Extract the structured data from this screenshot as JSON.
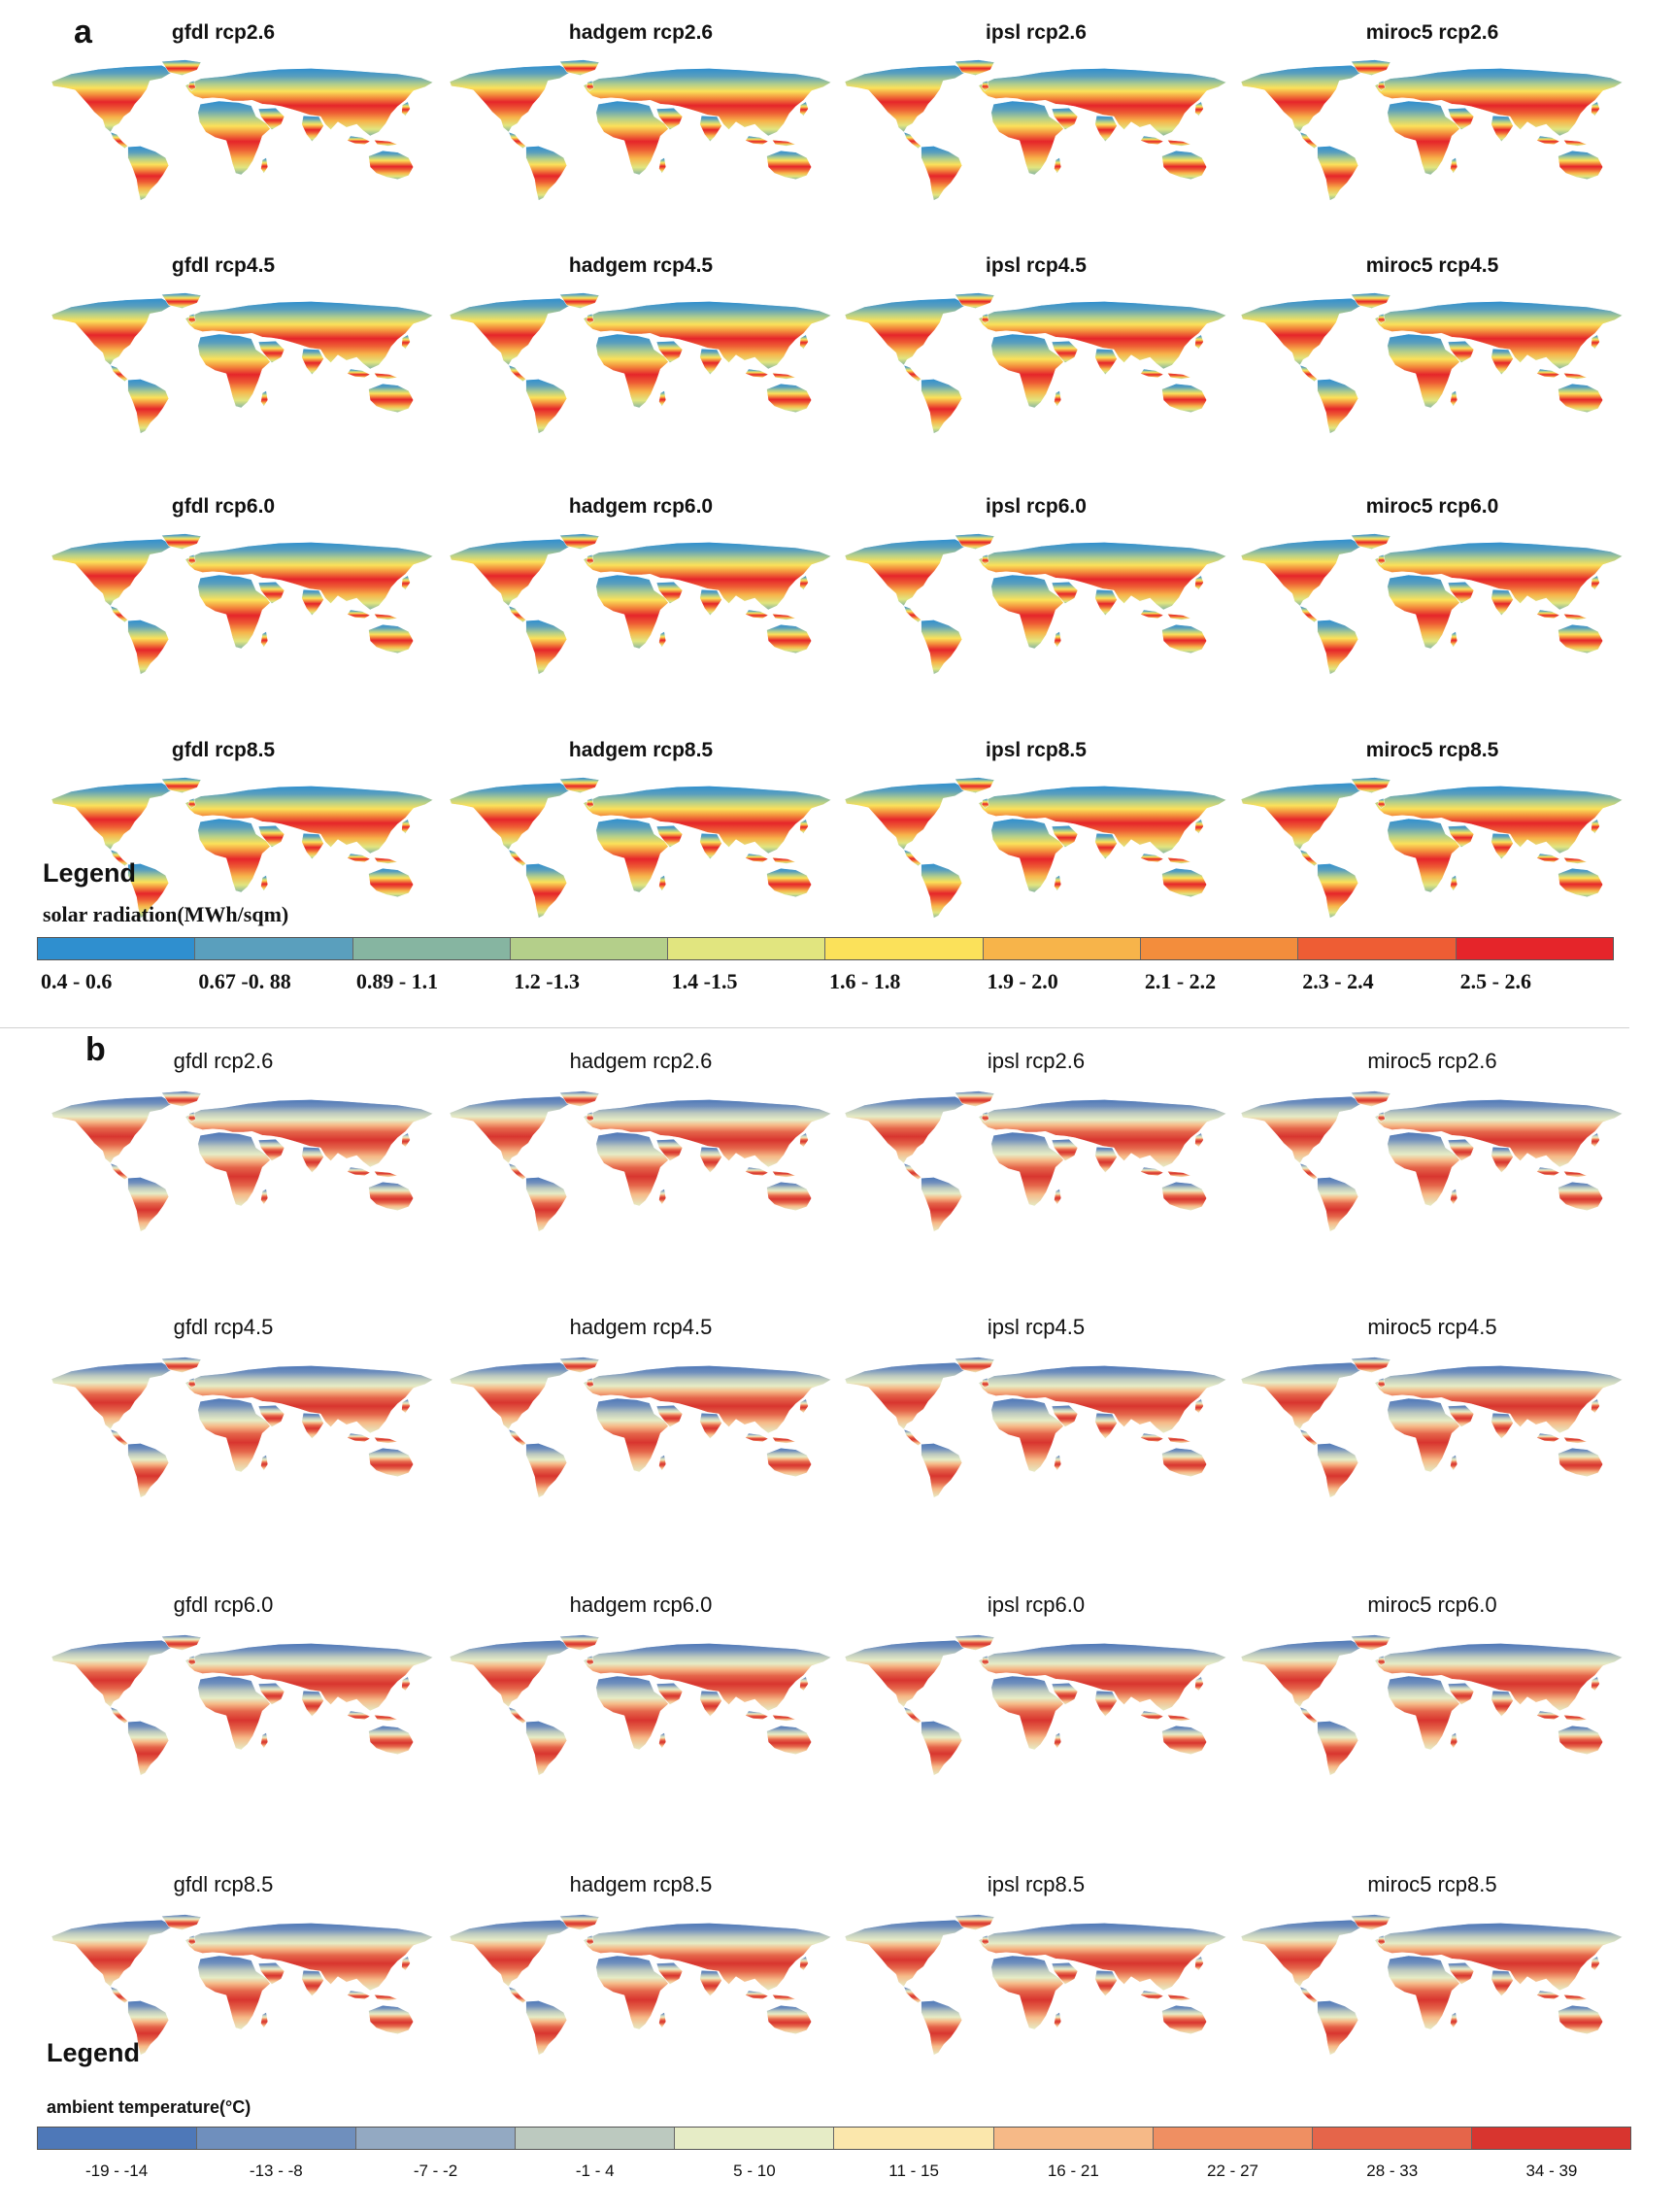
{
  "panels": [
    {
      "letter": "a",
      "rows": [
        [
          "gfdl rcp2.6",
          "hadgem rcp2.6",
          "ipsl rcp2.6",
          "miroc5 rcp2.6"
        ],
        [
          "gfdl rcp4.5",
          "hadgem rcp4.5",
          "ipsl rcp4.5",
          "miroc5 rcp4.5"
        ],
        [
          "gfdl rcp6.0",
          "hadgem rcp6.0",
          "ipsl rcp6.0",
          "miroc5 rcp6.0"
        ],
        [
          "gfdl rcp8.5",
          "hadgem rcp8.5",
          "ipsl rcp8.5",
          "miroc5 rcp8.5"
        ]
      ],
      "legend": {
        "title": "Legend",
        "subtitle": "solar radiation(MWh/sqm)",
        "classes": [
          "0.4 - 0.6",
          "0.67 -0. 88",
          "0.89 - 1.1",
          "1.2 -1.3",
          "1.4 -1.5",
          "1.6 - 1.8",
          "1.9 - 2.0",
          "2.1 - 2.2",
          "2.3 - 2.4",
          "2.5 - 2.6"
        ],
        "colors": [
          "#2f8fcf",
          "#5a9fbd",
          "#86b5a1",
          "#b4cf8a",
          "#e1e57f",
          "#fbe15a",
          "#f7b44a",
          "#f38d3c",
          "#ee5d34",
          "#e5252a"
        ]
      }
    },
    {
      "letter": "b",
      "rows": [
        [
          "gfdl rcp2.6",
          "hadgem rcp2.6",
          "ipsl rcp2.6",
          "miroc5 rcp2.6"
        ],
        [
          "gfdl rcp4.5",
          "hadgem rcp4.5",
          "ipsl rcp4.5",
          "miroc5 rcp4.5"
        ],
        [
          "gfdl rcp6.0",
          "hadgem rcp6.0",
          "ipsl rcp6.0",
          "miroc5 rcp6.0"
        ],
        [
          "gfdl rcp8.5",
          "hadgem rcp8.5",
          "ipsl rcp8.5",
          "miroc5 rcp8.5"
        ]
      ],
      "legend": {
        "title": "Legend",
        "subtitle": "ambient temperature(°C)",
        "classes": [
          "-19 - -14",
          "-13 - -8",
          "-7 - -2",
          "-1 - 4",
          "5 - 10",
          "11 - 15",
          "16 - 21",
          "22 - 27",
          "28 - 33",
          "34 - 39"
        ],
        "colors": [
          "#4e78b8",
          "#6f8fbd",
          "#93a9c2",
          "#bcc9bf",
          "#e6ecc6",
          "#fbe7ac",
          "#f6b987",
          "#ef8f62",
          "#e5654a",
          "#d8352f"
        ]
      }
    }
  ]
}
